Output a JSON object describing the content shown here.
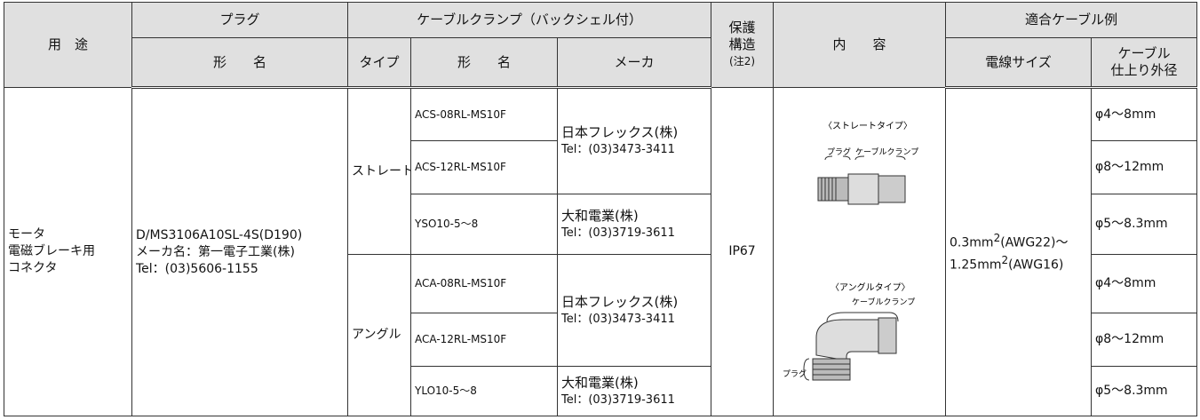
{
  "table": {
    "header": {
      "usage": "用　途",
      "plug": "プラグ",
      "plug_model": "形　　名",
      "clamp": "ケーブルクランプ（バックシェル付）",
      "clamp_type": "タイプ",
      "clamp_model": "形　　名",
      "clamp_maker": "メーカ",
      "protection": [
        "保護",
        "構造",
        "(注2)"
      ],
      "contents": "内　　容",
      "cable": "適合ケーブル例",
      "wire_size": "電線サイズ",
      "cable_diameter": [
        "ケーブル",
        "仕上り外径"
      ]
    },
    "usage": [
      "モータ",
      "電磁ブレーキ用",
      "コネクタ"
    ],
    "plug": [
      "D/MS3106A10SL-4S(D190)",
      "メーカ名：第一電子工業(株)",
      "Tel：(03)5606-1155"
    ],
    "types": [
      "ストレート",
      "アングル"
    ],
    "rows": [
      {
        "model": "ACS-08RL-MS10F",
        "diameter": "φ4～8mm"
      },
      {
        "model": "ACS-12RL-MS10F",
        "diameter": "φ8～12mm"
      },
      {
        "model": "YSO10-5～8",
        "diameter": "φ5～8.3mm"
      },
      {
        "model": "ACA-08RL-MS10F",
        "diameter": "φ4～8mm"
      },
      {
        "model": "ACA-12RL-MS10F",
        "diameter": "φ8～12mm"
      },
      {
        "model": "YLO10-5～8",
        "diameter": "φ5～8.3mm"
      }
    ],
    "makers": [
      {
        "name": "日本フレックス(株)",
        "tel": "Tel：(03)3473-3411"
      },
      {
        "name": "大和電業(株)",
        "tel": "Tel：(03)3719-3611"
      },
      {
        "name": "日本フレックス(株)",
        "tel": "Tel：(03)3473-3411"
      },
      {
        "name": "大和電業(株)",
        "tel": "Tel：(03)3719-3611"
      }
    ],
    "protection": "IP67",
    "diagram": {
      "straight_title": "〈ストレートタイプ〉",
      "straight_plug": "プラグ",
      "straight_clamp": "ケーブルクランプ",
      "angle_title": "〈アングルタイプ〉",
      "angle_clamp": "ケーブルクランプ",
      "angle_plug": "プラグ"
    },
    "wire_size": [
      {
        "base": "0.3mm",
        "sup": "2",
        "rest": "(AWG22)～"
      },
      {
        "base": "1.25mm",
        "sup": "2",
        "rest": "(AWG16)"
      }
    ]
  }
}
